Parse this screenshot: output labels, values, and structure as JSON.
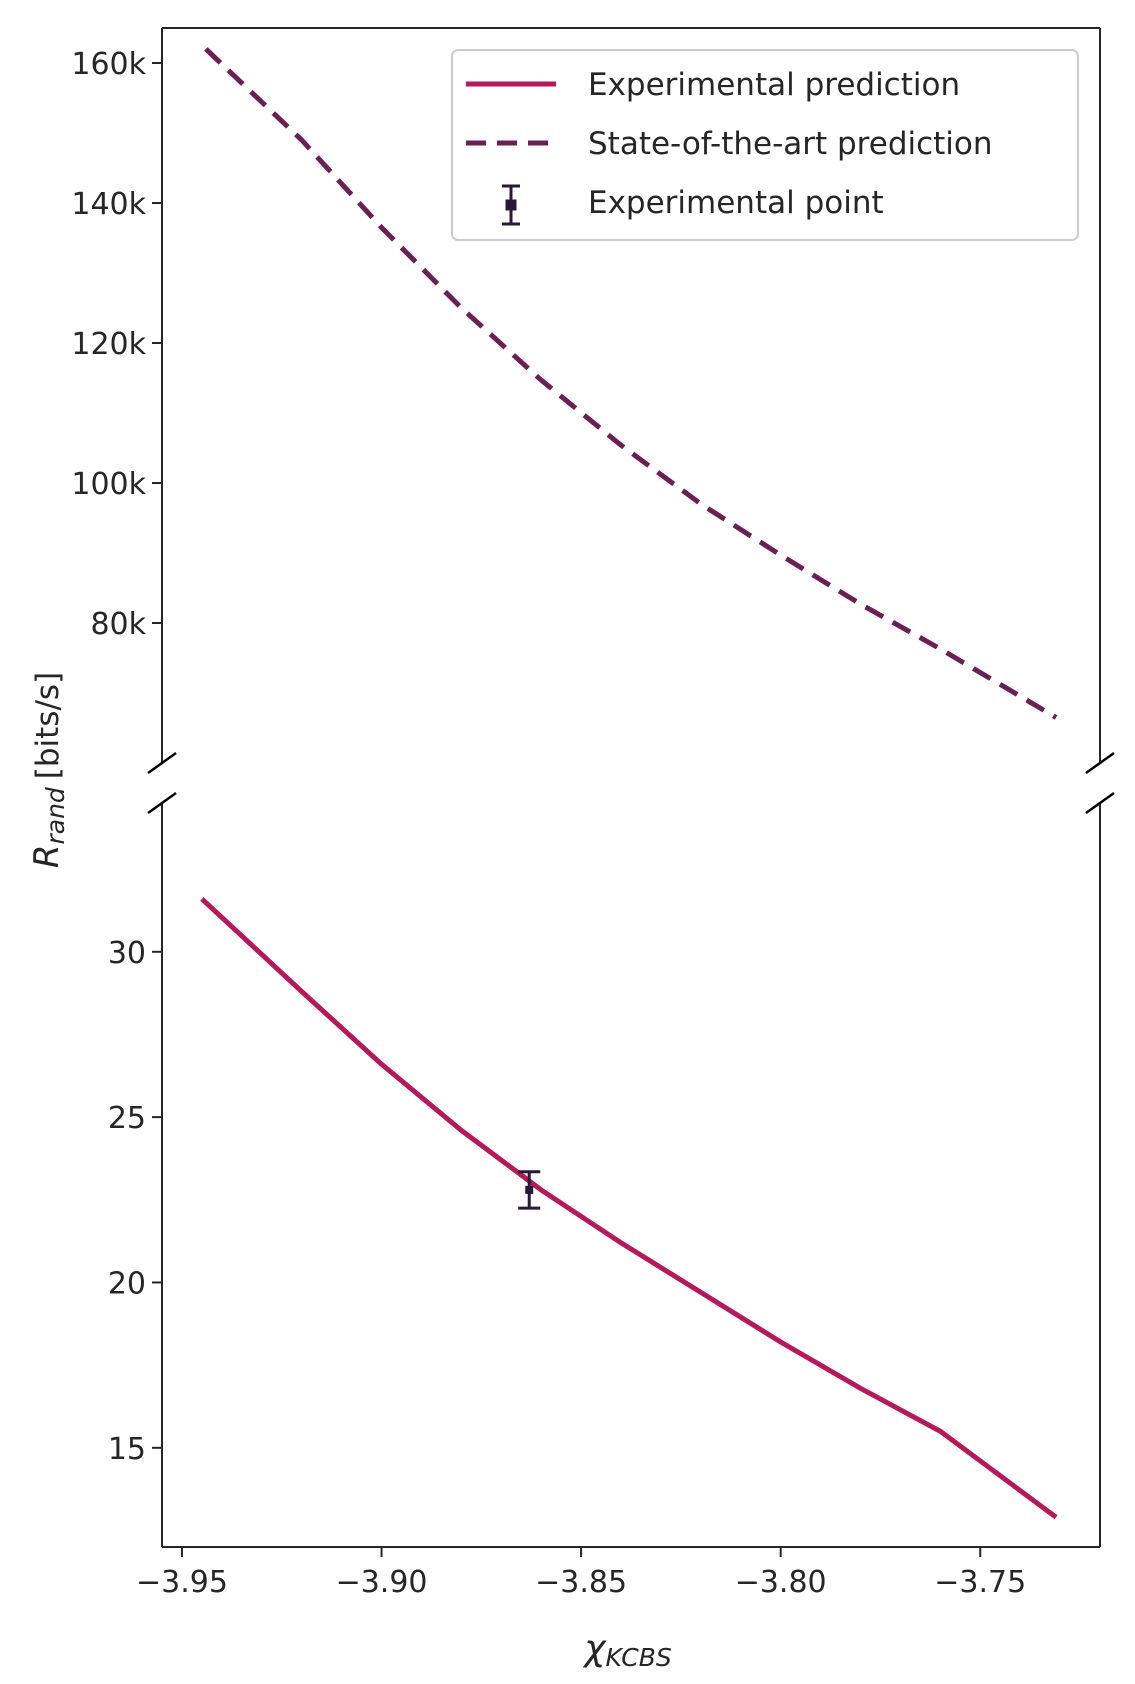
{
  "chart_data": {
    "type": "line",
    "broken_y_axis": true,
    "xlabel_symbol": "χ",
    "xlabel_subscript": "KCBS",
    "ylabel_symbol": "R",
    "ylabel_subscript": "rand",
    "ylabel_unit": "[bits/s]",
    "xlim": [
      -3.955,
      -3.72
    ],
    "x_ticks": [
      -3.95,
      -3.9,
      -3.85,
      -3.8,
      -3.75
    ],
    "x_tick_labels": [
      "−3.95",
      "−3.90",
      "−3.85",
      "−3.80",
      "−3.75"
    ],
    "panels": [
      {
        "name": "upper",
        "ylim": [
          60000,
          165000
        ],
        "y_ticks": [
          80000,
          100000,
          120000,
          140000,
          160000
        ],
        "y_tick_labels": [
          "80k",
          "100k",
          "120k",
          "140k",
          "160k"
        ]
      },
      {
        "name": "lower",
        "ylim": [
          12,
          34.5
        ],
        "y_ticks": [
          15,
          20,
          25,
          30
        ],
        "y_tick_labels": [
          "15",
          "20",
          "25",
          "30"
        ]
      }
    ],
    "series": [
      {
        "name": "Experimental prediction",
        "panel": "lower",
        "style": "solid",
        "color": "#b5195a",
        "x": [
          -3.945,
          -3.92,
          -3.9,
          -3.88,
          -3.86,
          -3.84,
          -3.82,
          -3.8,
          -3.78,
          -3.76,
          -3.731
        ],
        "y": [
          31.6,
          28.8,
          26.6,
          24.6,
          22.8,
          21.2,
          19.7,
          18.2,
          16.8,
          15.5,
          12.9
        ]
      },
      {
        "name": "State-of-the-art prediction",
        "panel": "upper",
        "style": "dashed",
        "color": "#6b1f55",
        "x": [
          -3.944,
          -3.92,
          -3.9,
          -3.88,
          -3.86,
          -3.84,
          -3.82,
          -3.8,
          -3.78,
          -3.76,
          -3.731
        ],
        "y": [
          162000,
          149000,
          136500,
          125000,
          114700,
          105400,
          97000,
          89700,
          82700,
          76300,
          66500
        ]
      },
      {
        "name": "Experimental point",
        "panel": "lower",
        "style": "errorbar",
        "color": "#2a1838",
        "x": [
          -3.863
        ],
        "y": [
          22.8
        ],
        "yerr": [
          0.55
        ]
      }
    ],
    "legend": {
      "position": "top-right",
      "entries": [
        "Experimental prediction",
        "State-of-the-art prediction",
        "Experimental point"
      ]
    },
    "grid": false
  }
}
